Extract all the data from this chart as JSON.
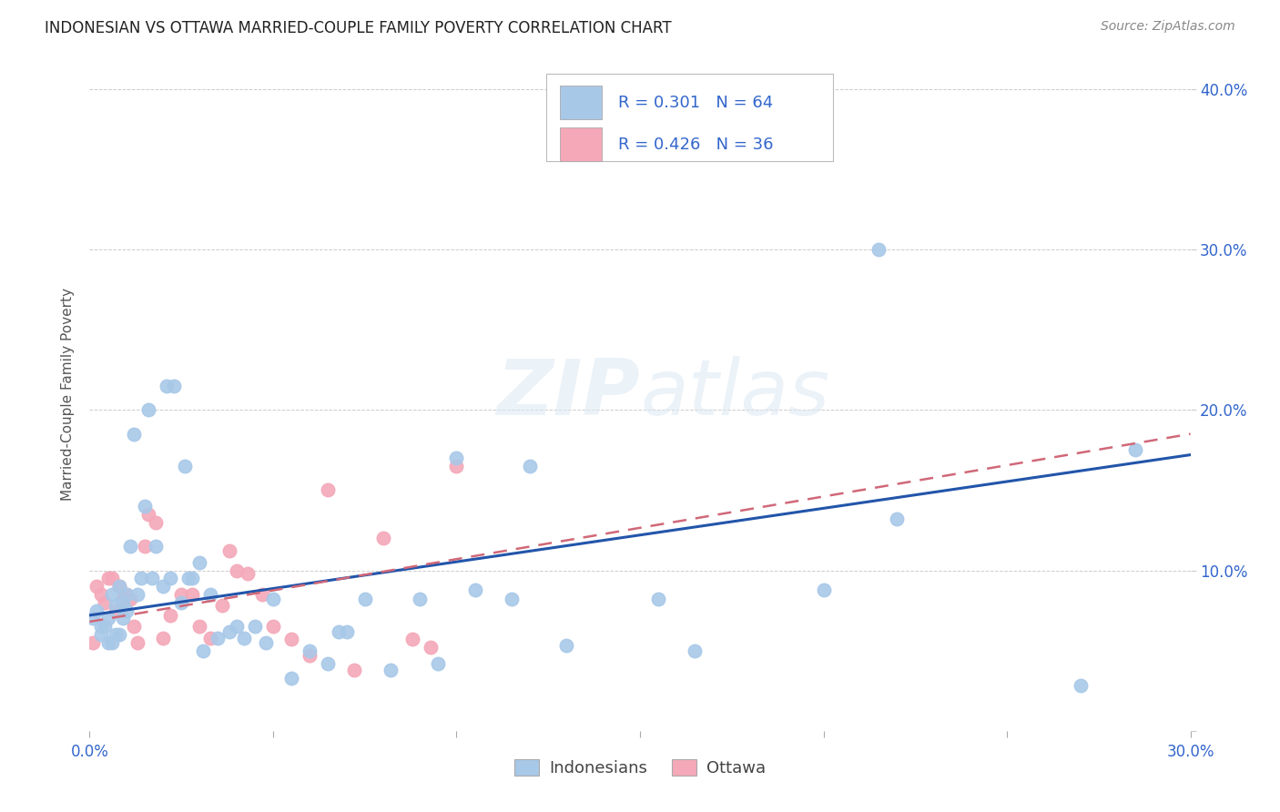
{
  "title": "INDONESIAN VS OTTAWA MARRIED-COUPLE FAMILY POVERTY CORRELATION CHART",
  "source": "Source: ZipAtlas.com",
  "ylabel": "Married-Couple Family Poverty",
  "xlim": [
    0.0,
    0.3
  ],
  "ylim": [
    0.0,
    0.42
  ],
  "xtick_positions": [
    0.0,
    0.05,
    0.1,
    0.15,
    0.2,
    0.25,
    0.3
  ],
  "xtick_labels": [
    "0.0%",
    "",
    "",
    "",
    "",
    "",
    "30.0%"
  ],
  "ytick_positions": [
    0.0,
    0.1,
    0.2,
    0.3,
    0.4
  ],
  "ytick_labels_right": [
    "",
    "10.0%",
    "20.0%",
    "30.0%",
    "40.0%"
  ],
  "indonesian_R": "0.301",
  "indonesian_N": "64",
  "ottawa_R": "0.426",
  "ottawa_N": "36",
  "indonesian_color": "#a8c8e8",
  "ottawa_color": "#f4a8b8",
  "indonesian_line_color": "#2255aa",
  "ottawa_line_color": "#d06878",
  "legend_text_color": "#3366cc",
  "background_color": "#ffffff",
  "grid_color": "#cccccc",
  "indonesian_x": [
    0.001,
    0.002,
    0.003,
    0.003,
    0.004,
    0.005,
    0.005,
    0.006,
    0.006,
    0.007,
    0.007,
    0.008,
    0.008,
    0.009,
    0.009,
    0.01,
    0.01,
    0.011,
    0.012,
    0.013,
    0.014,
    0.015,
    0.016,
    0.017,
    0.018,
    0.02,
    0.021,
    0.022,
    0.023,
    0.025,
    0.026,
    0.027,
    0.028,
    0.03,
    0.031,
    0.033,
    0.035,
    0.038,
    0.04,
    0.042,
    0.045,
    0.048,
    0.05,
    0.055,
    0.06,
    0.065,
    0.068,
    0.07,
    0.075,
    0.082,
    0.09,
    0.095,
    0.1,
    0.105,
    0.115,
    0.12,
    0.13,
    0.155,
    0.165,
    0.2,
    0.215,
    0.22,
    0.27,
    0.285
  ],
  "indonesian_y": [
    0.07,
    0.075,
    0.06,
    0.065,
    0.065,
    0.055,
    0.07,
    0.055,
    0.085,
    0.06,
    0.078,
    0.06,
    0.09,
    0.07,
    0.08,
    0.075,
    0.085,
    0.115,
    0.185,
    0.085,
    0.095,
    0.14,
    0.2,
    0.095,
    0.115,
    0.09,
    0.215,
    0.095,
    0.215,
    0.08,
    0.165,
    0.095,
    0.095,
    0.105,
    0.05,
    0.085,
    0.058,
    0.062,
    0.065,
    0.058,
    0.065,
    0.055,
    0.082,
    0.033,
    0.05,
    0.042,
    0.062,
    0.062,
    0.082,
    0.038,
    0.082,
    0.042,
    0.17,
    0.088,
    0.082,
    0.165,
    0.053,
    0.082,
    0.05,
    0.088,
    0.3,
    0.132,
    0.028,
    0.175
  ],
  "ottawa_x": [
    0.001,
    0.002,
    0.003,
    0.004,
    0.005,
    0.006,
    0.007,
    0.008,
    0.009,
    0.01,
    0.011,
    0.012,
    0.013,
    0.015,
    0.016,
    0.018,
    0.02,
    0.022,
    0.025,
    0.028,
    0.03,
    0.033,
    0.036,
    0.038,
    0.04,
    0.043,
    0.047,
    0.05,
    0.055,
    0.06,
    0.065,
    0.072,
    0.08,
    0.088,
    0.093,
    0.1
  ],
  "ottawa_y": [
    0.055,
    0.09,
    0.085,
    0.08,
    0.095,
    0.095,
    0.075,
    0.09,
    0.082,
    0.085,
    0.082,
    0.065,
    0.055,
    0.115,
    0.135,
    0.13,
    0.058,
    0.072,
    0.085,
    0.085,
    0.065,
    0.058,
    0.078,
    0.112,
    0.1,
    0.098,
    0.085,
    0.065,
    0.057,
    0.047,
    0.15,
    0.038,
    0.12,
    0.057,
    0.052,
    0.165
  ],
  "indo_line_x0": 0.0,
  "indo_line_x1": 0.3,
  "indo_line_y0": 0.072,
  "indo_line_y1": 0.172,
  "ottawa_line_x0": 0.0,
  "ottawa_line_x1": 0.3,
  "ottawa_line_y0": 0.068,
  "ottawa_line_y1": 0.185
}
